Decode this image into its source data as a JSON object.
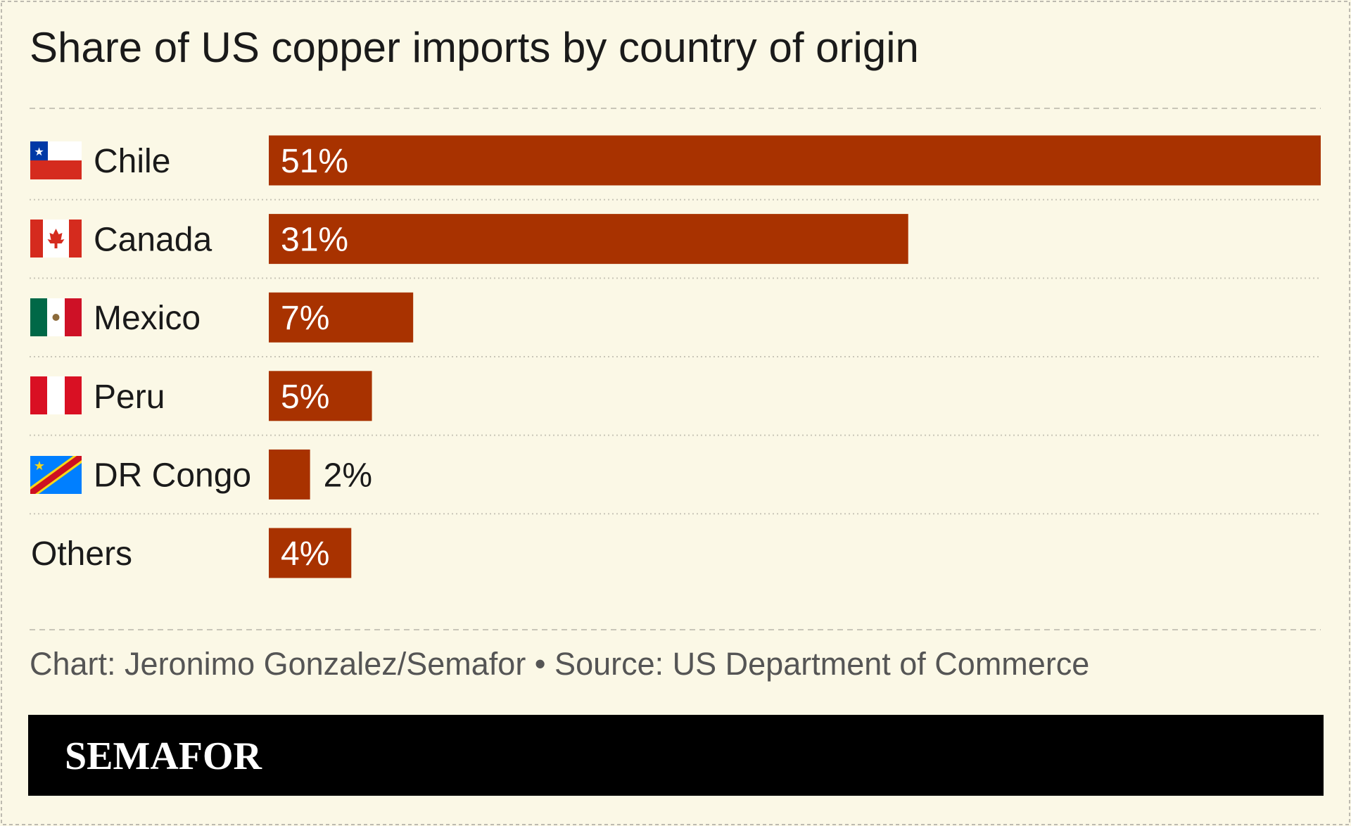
{
  "chart_data": {
    "type": "bar",
    "orientation": "horizontal",
    "title": "Share of US copper imports by country of origin",
    "categories": [
      "Chile",
      "Canada",
      "Mexico",
      "Peru",
      "DR Congo",
      "Others"
    ],
    "values": [
      51,
      31,
      7,
      5,
      2,
      4
    ],
    "value_labels": [
      "51%",
      "31%",
      "7%",
      "5%",
      "2%",
      "4%"
    ],
    "color": "#a83200",
    "footer": "Chart: Jeronimo Gonzalez/Semafor • Source: US Department of Commerce",
    "brand": "SEMAFOR"
  }
}
